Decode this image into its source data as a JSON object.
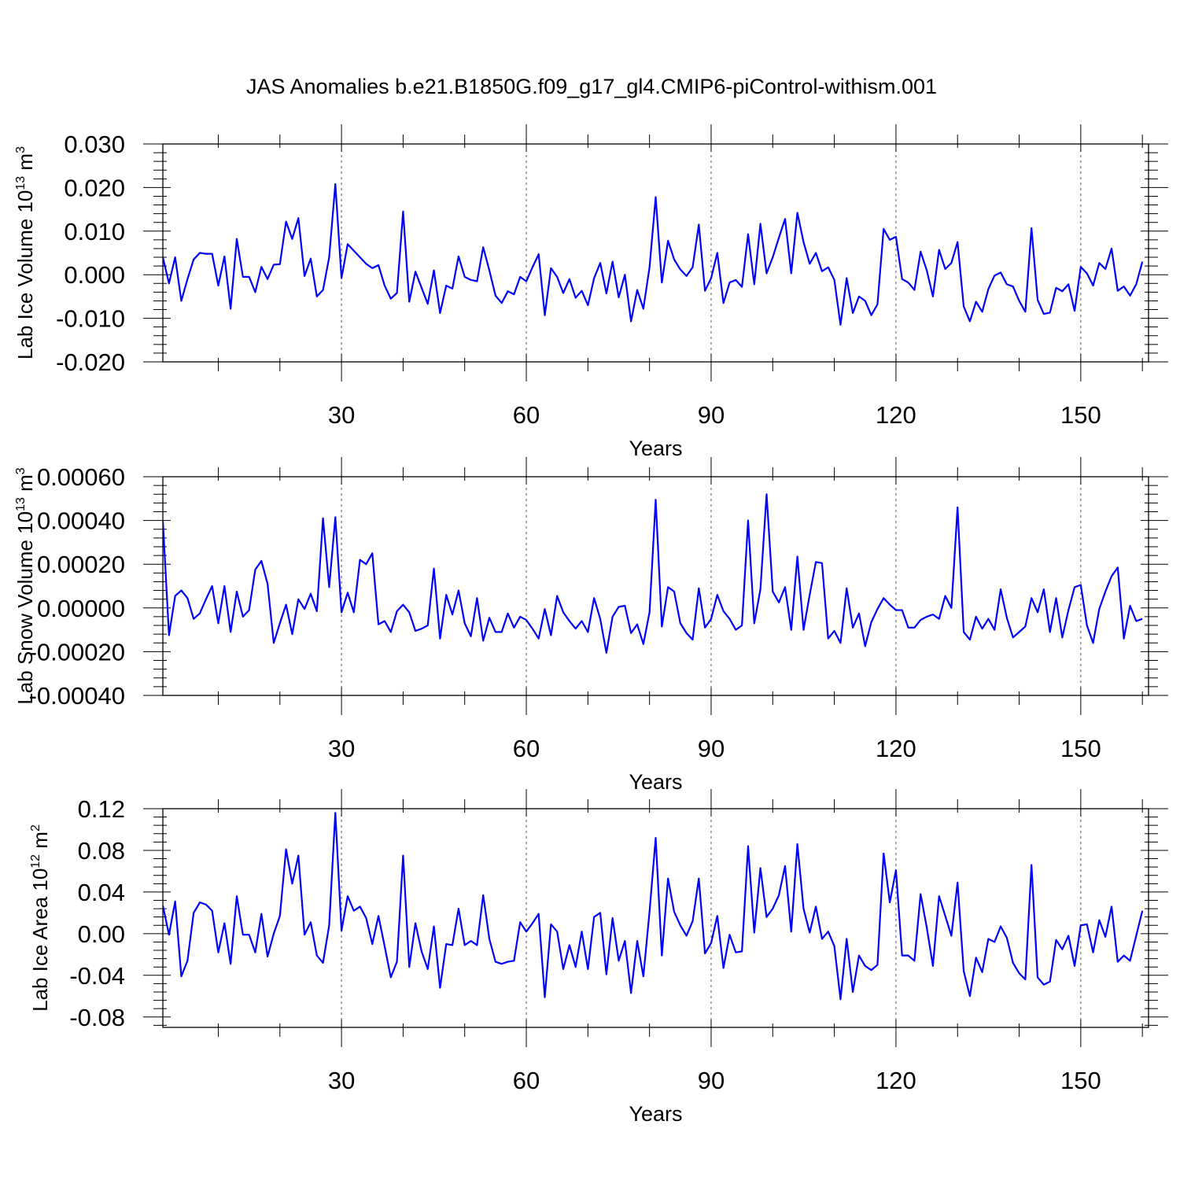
{
  "title": "JAS Anomalies b.e21.B1850G.f09_g17_gl4.CMIP6-piControl-withism.001",
  "chart_data": [
    {
      "type": "line",
      "title": "JAS Anomalies b.e21.B1850G.f09_g17_gl4.CMIP6-piControl-withism.001",
      "xlabel": "Years",
      "ylabel": "Lab Ice Volume 10",
      "ylabel_exponent": "13",
      "ylabel_unit": " m",
      "ylabel_unit_exponent": "3",
      "xlim": [
        1,
        161
      ],
      "ylim": [
        -0.02,
        0.03
      ],
      "xticks": [
        30,
        60,
        90,
        120,
        150
      ],
      "yticks": [
        "-0.020",
        "-0.010",
        "0.000",
        "0.010",
        "0.020",
        "0.030"
      ],
      "grid": "vertical dashed lines at major x ticks",
      "color": "#0000ff",
      "values": [
        0.004,
        -0.002,
        0.004,
        -0.006,
        -0.001,
        0.0035,
        0.005,
        0.0048,
        0.0048,
        -0.0025,
        0.0042,
        -0.0078,
        0.0082,
        -0.0005,
        -0.0005,
        -0.004,
        0.0018,
        -0.001,
        0.0023,
        0.0024,
        0.0122,
        0.0082,
        0.013,
        -0.0003,
        0.0037,
        -0.005,
        -0.0035,
        0.004,
        0.0208,
        -0.0008,
        0.007,
        0.0055,
        0.004,
        0.0025,
        0.0015,
        0.0022,
        -0.0025,
        -0.0055,
        -0.0042,
        0.0145,
        -0.0062,
        0.0007,
        -0.003,
        -0.0067,
        0.001,
        -0.0088,
        -0.0025,
        -0.0032,
        0.0042,
        -0.0005,
        -0.0012,
        -0.0015,
        0.0063,
        0.001,
        -0.0048,
        -0.0065,
        -0.0038,
        -0.0045,
        -0.0005,
        -0.0015,
        0.0017,
        0.0047,
        -0.0093,
        0.0015,
        -0.0005,
        -0.0042,
        -0.001,
        -0.0053,
        -0.0037,
        -0.007,
        -0.0008,
        0.0027,
        -0.0043,
        0.003,
        -0.0052,
        0.0,
        -0.0107,
        -0.0035,
        -0.0078,
        0.0017,
        0.0178,
        -0.0018,
        0.0078,
        0.0035,
        0.0012,
        -0.0003,
        0.0017,
        0.0115,
        -0.0037,
        -0.0008,
        0.005,
        -0.0065,
        -0.0018,
        -0.0012,
        -0.0028,
        0.0093,
        -0.0022,
        0.0117,
        0.0003,
        0.004,
        0.0085,
        0.0128,
        0.0003,
        0.0142,
        0.0075,
        0.0025,
        0.005,
        0.0008,
        0.0017,
        -0.0012,
        -0.0115,
        -0.0008,
        -0.0088,
        -0.005,
        -0.006,
        -0.0093,
        -0.0068,
        0.0105,
        0.008,
        0.0087,
        -0.001,
        -0.0018,
        -0.0035,
        0.0053,
        0.001,
        -0.005,
        0.0057,
        0.0013,
        0.0027,
        0.0075,
        -0.0073,
        -0.0107,
        -0.0062,
        -0.0085,
        -0.0033,
        -0.0002,
        0.0005,
        -0.0022,
        -0.0027,
        -0.006,
        -0.0085,
        0.0107,
        -0.0058,
        -0.009,
        -0.0087,
        -0.003,
        -0.0038,
        -0.0022,
        -0.0083,
        0.0018,
        0.0003,
        -0.0025,
        0.0027,
        0.0013,
        0.006,
        -0.0037,
        -0.0027,
        -0.0048,
        -0.0022,
        0.003
      ]
    },
    {
      "type": "line",
      "xlabel": "Years",
      "ylabel": "Lab Snow Volume 10",
      "ylabel_exponent": "13",
      "ylabel_unit": " m",
      "ylabel_unit_exponent": "3",
      "xlim": [
        1,
        161
      ],
      "ylim": [
        -0.0004,
        0.0006
      ],
      "xticks": [
        30,
        60,
        90,
        120,
        150
      ],
      "yticks": [
        "-0.00040",
        "-0.00020",
        "0.00000",
        "0.00020",
        "0.00040",
        "0.00060"
      ],
      "grid": "vertical dashed lines at major x ticks",
      "color": "#0000ff",
      "values": [
        0.0004,
        -0.000125,
        5.5e-05,
        8e-05,
        4.5e-05,
        -5e-05,
        -2.5e-05,
        4e-05,
        0.0001,
        -7e-05,
        0.0001,
        -0.00011,
        7.5e-05,
        -4e-05,
        -1e-05,
        0.000175,
        0.000215,
        0.00011,
        -0.00016,
        -7e-05,
        1.5e-05,
        -0.00012,
        4e-05,
        -5e-06,
        6.5e-05,
        -1.5e-05,
        0.00041,
        9.5e-05,
        0.000415,
        -2e-05,
        7e-05,
        -2e-05,
        0.00022,
        0.0002,
        0.00025,
        -7.5e-05,
        -6e-05,
        -0.00011,
        -1.5e-05,
        1.5e-05,
        -2e-05,
        -0.000105,
        -9.5e-05,
        -8e-05,
        0.00018,
        -0.00014,
        6e-05,
        -3e-05,
        8e-05,
        -7e-05,
        -0.00013,
        4.5e-05,
        -0.00015,
        -4.5e-05,
        -0.00011,
        -0.00011,
        -2.5e-05,
        -9e-05,
        -4e-05,
        -5.5e-05,
        -9.5e-05,
        -0.00014,
        -5e-06,
        -0.000125,
        5.5e-05,
        -2e-05,
        -6e-05,
        -9.5e-05,
        -6e-05,
        -0.00011,
        4.5e-05,
        -5e-05,
        -0.000205,
        -4e-05,
        5e-06,
        1e-05,
        -0.000115,
        -7.5e-05,
        -0.000165,
        -2e-05,
        0.000495,
        -8.5e-05,
        9.5e-05,
        7.5e-05,
        -7e-05,
        -0.000115,
        -0.000145,
        9e-05,
        -9e-05,
        -5e-05,
        6e-05,
        -1.5e-05,
        -5e-05,
        -0.0001,
        -8e-05,
        0.0004,
        -7e-05,
        8.5e-05,
        0.00052,
        7.5e-05,
        2.5e-05,
        9.5e-05,
        -0.0001,
        0.000235,
        -0.0001,
        6e-05,
        0.00021,
        0.000205,
        -0.00014,
        -0.000105,
        -0.00016,
        9e-05,
        -9e-05,
        -2.5e-05,
        -0.000175,
        -6.5e-05,
        -5e-06,
        4.5e-05,
        1.5e-05,
        -1e-05,
        -1e-05,
        -9e-05,
        -9e-05,
        -5.5e-05,
        -4e-05,
        -3e-05,
        -5e-05,
        5.5e-05,
        0.0,
        0.00046,
        -0.00011,
        -0.000145,
        -4e-05,
        -9.5e-05,
        -5e-05,
        -0.0001,
        8.5e-05,
        -4.5e-05,
        -0.000135,
        -0.00011,
        -8.5e-05,
        4.5e-05,
        -2e-05,
        8.5e-05,
        -0.00011,
        4.5e-05,
        -0.000135,
        -1e-05,
        9.5e-05,
        0.000105,
        -8e-05,
        -0.00016,
        -5e-06,
        7.5e-05,
        0.000145,
        0.000185,
        -0.00014,
        1e-05,
        -6e-05,
        -5e-05
      ]
    },
    {
      "type": "line",
      "xlabel": "Years",
      "ylabel": "Lab Ice Area 10",
      "ylabel_exponent": "12",
      "ylabel_unit": " m",
      "ylabel_unit_exponent": "2",
      "xlim": [
        1,
        161
      ],
      "ylim": [
        -0.09,
        0.12
      ],
      "xticks": [
        30,
        60,
        90,
        120,
        150
      ],
      "yticks": [
        "-0.08",
        "-0.04",
        "0.00",
        "0.04",
        "0.08",
        "0.12"
      ],
      "grid": "vertical dashed lines at major x ticks",
      "color": "#0000ff",
      "values": [
        0.027,
        -0.001,
        0.031,
        -0.041,
        -0.026,
        0.02,
        0.03,
        0.028,
        0.022,
        -0.018,
        0.01,
        -0.029,
        0.036,
        -0.001,
        -0.001,
        -0.018,
        0.019,
        -0.022,
        0.0,
        0.017,
        0.081,
        0.048,
        0.075,
        -0.001,
        0.011,
        -0.021,
        -0.028,
        0.008,
        0.116,
        0.003,
        0.036,
        0.022,
        0.026,
        0.015,
        -0.01,
        0.017,
        -0.012,
        -0.042,
        -0.027,
        0.075,
        -0.032,
        0.01,
        -0.017,
        -0.034,
        0.007,
        -0.052,
        -0.01,
        -0.011,
        0.024,
        -0.011,
        -0.007,
        -0.011,
        0.037,
        -0.005,
        -0.027,
        -0.029,
        -0.027,
        -0.026,
        0.011,
        0.002,
        0.01,
        0.019,
        -0.061,
        0.009,
        0.002,
        -0.034,
        -0.011,
        -0.032,
        0.002,
        -0.034,
        0.016,
        0.02,
        -0.039,
        0.015,
        -0.026,
        -0.007,
        -0.057,
        -0.007,
        -0.041,
        0.021,
        0.092,
        -0.021,
        0.053,
        0.021,
        0.008,
        -0.002,
        0.012,
        0.053,
        -0.019,
        -0.009,
        0.017,
        -0.033,
        -0.001,
        -0.018,
        -0.017,
        0.084,
        0.001,
        0.063,
        0.016,
        0.024,
        0.037,
        0.065,
        0.002,
        0.086,
        0.024,
        0.001,
        0.026,
        -0.005,
        0.002,
        -0.012,
        -0.063,
        -0.005,
        -0.056,
        -0.021,
        -0.031,
        -0.035,
        -0.03,
        0.077,
        0.03,
        0.061,
        -0.021,
        -0.021,
        -0.026,
        0.038,
        0.006,
        -0.031,
        0.036,
        0.017,
        -0.002,
        0.049,
        -0.036,
        -0.06,
        -0.023,
        -0.037,
        -0.005,
        -0.008,
        0.007,
        -0.004,
        -0.028,
        -0.038,
        -0.044,
        0.066,
        -0.042,
        -0.049,
        -0.046,
        -0.006,
        -0.015,
        -0.002,
        -0.031,
        0.008,
        0.009,
        -0.018,
        0.013,
        -0.003,
        0.026,
        -0.027,
        -0.021,
        -0.026,
        -0.002,
        0.022
      ]
    }
  ]
}
